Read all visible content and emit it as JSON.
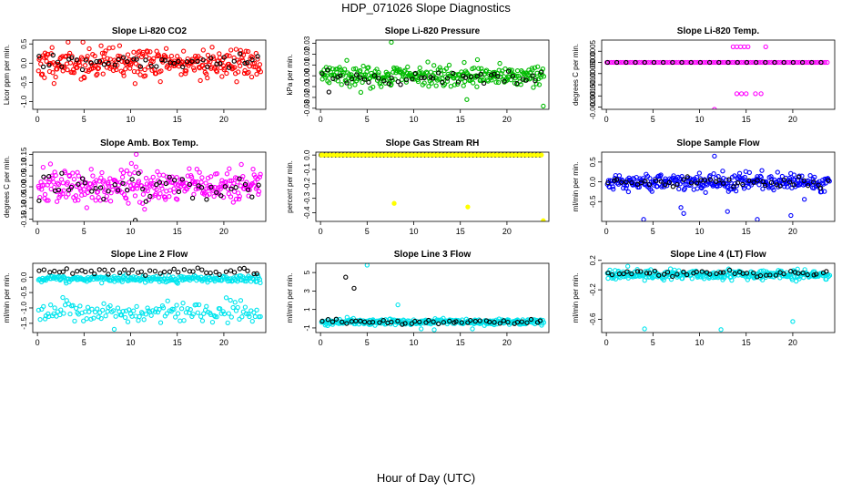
{
  "page": {
    "title": "HDP_071026  Slope Diagnostics",
    "xlabel": "Hour of Day (UTC)"
  },
  "chart_data": [
    {
      "type": "scatter",
      "title": "Slope Li-820 CO2",
      "ylabel": "Licor ppm per min.",
      "xlim": [
        -0.5,
        24.5
      ],
      "ylim": [
        -1.2,
        0.6
      ],
      "xticks": [
        "0",
        "5",
        "10",
        "15",
        "20"
      ],
      "xtick_values": [
        0,
        5,
        10,
        15,
        20
      ],
      "yticks": [
        "-1.0",
        "-0.5",
        "0.0",
        "0.5"
      ],
      "ytick_values": [
        -1.0,
        -0.5,
        0.0,
        0.5
      ],
      "series": [
        {
          "color": "#ff0000",
          "pattern": {
            "kind": "band",
            "center": 0.0,
            "spread": 0.38,
            "n": 300,
            "seed": 11
          }
        },
        {
          "color": "#000000",
          "pattern": {
            "kind": "band",
            "center": 0.03,
            "spread": 0.2,
            "n": 48,
            "seed": 12
          }
        }
      ]
    },
    {
      "type": "scatter",
      "title": "Slope Li-820 Pressure",
      "ylabel": "kPa per min.",
      "xlim": [
        -0.5,
        24.5
      ],
      "ylim": [
        -0.031,
        0.033
      ],
      "xticks": [
        "0",
        "5",
        "10",
        "15",
        "20"
      ],
      "xtick_values": [
        0,
        5,
        10,
        15,
        20
      ],
      "yticks": [
        "-0.03",
        "-0.02",
        "-0.01",
        "0.00",
        "0.01",
        "0.02",
        "0.03"
      ],
      "ytick_values": [
        -0.03,
        -0.02,
        -0.01,
        0.0,
        0.01,
        0.02,
        0.03
      ],
      "series": [
        {
          "color": "#00bb00",
          "pattern": {
            "kind": "band",
            "center": 0.0,
            "spread": 0.009,
            "n": 300,
            "seed": 21
          }
        },
        {
          "color": "#000000",
          "pattern": {
            "kind": "band",
            "center": -0.002,
            "spread": 0.006,
            "n": 48,
            "seed": 22
          }
        }
      ],
      "points": [
        {
          "x": 7.6,
          "y": 0.031,
          "s": 0
        },
        {
          "x": 15.7,
          "y": -0.022,
          "s": 0
        },
        {
          "x": 23.9,
          "y": -0.028,
          "s": 0
        },
        {
          "x": 0.9,
          "y": -0.015,
          "s": 1
        }
      ]
    },
    {
      "type": "scatter",
      "title": "Slope Li-820 Temp.",
      "ylabel": "degrees C per min.",
      "xlim": [
        -0.5,
        24.5
      ],
      "ylim": [
        -0.0021,
        0.001
      ],
      "xticks": [
        "0",
        "5",
        "10",
        "15",
        "20"
      ],
      "xtick_values": [
        0,
        5,
        10,
        15,
        20
      ],
      "yticks": [
        "-0.0020",
        "-0.0015",
        "-0.0010",
        "-0.0005",
        "0.0000",
        "0.0005"
      ],
      "ytick_values": [
        -0.002,
        -0.0015,
        -0.001,
        -0.0005,
        0.0,
        0.0005
      ],
      "series": [
        {
          "color": "#ff00ff",
          "pattern": {
            "kind": "flat",
            "value": 0.0,
            "n": 96
          }
        },
        {
          "color": "#000000",
          "pattern": {
            "kind": "flat",
            "value": 0.0,
            "n": 24,
            "offset": 0.08
          }
        }
      ],
      "points": [
        {
          "x": 13.6,
          "y": 0.0007,
          "s": 0
        },
        {
          "x": 14.0,
          "y": 0.0007,
          "s": 0
        },
        {
          "x": 14.4,
          "y": 0.0007,
          "s": 0
        },
        {
          "x": 14.8,
          "y": 0.0007,
          "s": 0
        },
        {
          "x": 15.2,
          "y": 0.0007,
          "s": 0
        },
        {
          "x": 17.1,
          "y": 0.0007,
          "s": 0
        },
        {
          "x": 14.0,
          "y": -0.0014,
          "s": 0
        },
        {
          "x": 14.5,
          "y": -0.0014,
          "s": 0
        },
        {
          "x": 15.0,
          "y": -0.0014,
          "s": 0
        },
        {
          "x": 16.0,
          "y": -0.0014,
          "s": 0
        },
        {
          "x": 16.6,
          "y": -0.0014,
          "s": 0
        },
        {
          "x": 11.6,
          "y": -0.0021,
          "s": 0
        }
      ]
    },
    {
      "type": "scatter",
      "title": "Slope Amb. Box Temp.",
      "ylabel": "degrees C per min.",
      "xlim": [
        -0.5,
        24.5
      ],
      "ylim": [
        -0.16,
        0.16
      ],
      "xticks": [
        "0",
        "5",
        "10",
        "15",
        "20"
      ],
      "xtick_values": [
        0,
        5,
        10,
        15,
        20
      ],
      "yticks": [
        "-0.15",
        "-0.10",
        "-0.05",
        "0.00",
        "0.05",
        "0.10",
        "0.15"
      ],
      "ytick_values": [
        -0.15,
        -0.1,
        -0.05,
        0.0,
        0.05,
        0.1,
        0.15
      ],
      "series": [
        {
          "color": "#ff00ff",
          "pattern": {
            "kind": "band",
            "center": 0.0,
            "spread": 0.075,
            "n": 300,
            "seed": 41
          }
        },
        {
          "color": "#000000",
          "pattern": {
            "kind": "band",
            "center": 0.0,
            "spread": 0.06,
            "n": 48,
            "seed": 42
          }
        }
      ],
      "points": [
        {
          "x": 10.5,
          "y": -0.155,
          "s": 1
        },
        {
          "x": 10.6,
          "y": 0.15,
          "s": 0
        }
      ]
    },
    {
      "type": "scatter",
      "title": "Slope Gas Stream RH",
      "ylabel": "percent per min.",
      "xlim": [
        -0.5,
        24.5
      ],
      "ylim": [
        -0.46,
        0.02
      ],
      "xticks": [
        "0",
        "5",
        "10",
        "15",
        "20"
      ],
      "xtick_values": [
        0,
        5,
        10,
        15,
        20
      ],
      "yticks": [
        "-0.4",
        "-0.3",
        "-0.2",
        "-0.1",
        "0.0"
      ],
      "ytick_values": [
        -0.4,
        -0.3,
        -0.2,
        -0.1,
        0.0
      ],
      "series": [
        {
          "color": "#000000",
          "pattern": {
            "kind": "flat",
            "value": 0.0,
            "n": 60
          }
        },
        {
          "color": "#ffff00",
          "pattern": {
            "kind": "flat",
            "value": 0.0,
            "n": 60,
            "offset": 0.15,
            "filled": true
          }
        }
      ],
      "points": [
        {
          "x": 7.9,
          "y": -0.335,
          "s": 1
        },
        {
          "x": 15.8,
          "y": -0.36,
          "s": 1
        },
        {
          "x": 23.9,
          "y": -0.455,
          "s": 1
        },
        {
          "x": 0.1,
          "y": 0.0,
          "s": 1
        }
      ]
    },
    {
      "type": "scatter",
      "title": "Slope Sample Flow",
      "ylabel": "ml/min per min.",
      "xlim": [
        -0.5,
        24.5
      ],
      "ylim": [
        -1.0,
        0.75
      ],
      "xticks": [
        "0",
        "5",
        "10",
        "15",
        "20"
      ],
      "xtick_values": [
        0,
        5,
        10,
        15,
        20
      ],
      "yticks": [
        "-0.5",
        "0.0",
        "0.5"
      ],
      "ytick_values": [
        -0.5,
        0.0,
        0.5
      ],
      "series": [
        {
          "color": "#0000ff",
          "pattern": {
            "kind": "band",
            "center": 0.0,
            "spread": 0.2,
            "n": 300,
            "seed": 61
          }
        },
        {
          "color": "#000000",
          "pattern": {
            "kind": "band",
            "center": -0.02,
            "spread": 0.12,
            "n": 48,
            "seed": 62
          }
        }
      ],
      "points": [
        {
          "x": 4.0,
          "y": -0.95,
          "s": 0
        },
        {
          "x": 8.3,
          "y": -0.8,
          "s": 0
        },
        {
          "x": 8.0,
          "y": -0.65,
          "s": 0
        },
        {
          "x": 11.6,
          "y": 0.65,
          "s": 0
        },
        {
          "x": 16.2,
          "y": -0.95,
          "s": 0
        },
        {
          "x": 19.8,
          "y": -0.85,
          "s": 0
        },
        {
          "x": 13.0,
          "y": -0.75,
          "s": 0
        }
      ]
    },
    {
      "type": "scatter",
      "title": "Slope Line 2 Flow",
      "ylabel": "ml/min per min.",
      "xlim": [
        -0.5,
        24.5
      ],
      "ylim": [
        -1.8,
        0.45
      ],
      "xticks": [
        "0",
        "5",
        "10",
        "15",
        "20"
      ],
      "xtick_values": [
        0,
        5,
        10,
        15,
        20
      ],
      "yticks": [
        "-1.5",
        "-1.0",
        "-0.5",
        "0.0"
      ],
      "ytick_values": [
        -1.5,
        -1.0,
        -0.5,
        0.0
      ],
      "series": [
        {
          "color": "#00e5ee",
          "pattern": {
            "kind": "band",
            "center": -0.05,
            "spread": 0.1,
            "n": 240,
            "seed": 71
          }
        },
        {
          "color": "#00e5ee",
          "pattern": {
            "kind": "band",
            "center": -1.15,
            "spread": 0.3,
            "n": 150,
            "seed": 72
          }
        },
        {
          "color": "#000000",
          "pattern": {
            "kind": "band",
            "center": 0.2,
            "spread": 0.1,
            "n": 48,
            "seed": 73
          }
        }
      ]
    },
    {
      "type": "scatter",
      "title": "Slope Line 3 Flow",
      "ylabel": "ml/min per min.",
      "xlim": [
        -0.5,
        24.5
      ],
      "ylim": [
        -1.5,
        6.0
      ],
      "xticks": [
        "0",
        "5",
        "10",
        "15",
        "20"
      ],
      "xtick_values": [
        0,
        5,
        10,
        15,
        20
      ],
      "yticks": [
        "-1",
        "1",
        "3",
        "5"
      ],
      "ytick_values": [
        -1,
        1,
        3,
        5
      ],
      "series": [
        {
          "color": "#00e5ee",
          "pattern": {
            "kind": "band",
            "center": -0.35,
            "spread": 0.3,
            "n": 300,
            "seed": 81
          }
        },
        {
          "color": "#000000",
          "pattern": {
            "kind": "band",
            "center": -0.35,
            "spread": 0.2,
            "n": 48,
            "seed": 82
          }
        }
      ],
      "points": [
        {
          "x": 2.7,
          "y": 4.5,
          "s": 1
        },
        {
          "x": 3.6,
          "y": 3.3,
          "s": 1
        },
        {
          "x": 5.0,
          "y": 5.8,
          "s": 0
        },
        {
          "x": 8.3,
          "y": 1.5,
          "s": 0
        },
        {
          "x": 10.8,
          "y": -1.1,
          "s": 0
        },
        {
          "x": 12.2,
          "y": -1.2,
          "s": 0
        },
        {
          "x": 16.3,
          "y": -1.1,
          "s": 0
        }
      ]
    },
    {
      "type": "scatter",
      "title": "Slope Line 4 (LT) Flow",
      "ylabel": "ml/min per min.",
      "xlim": [
        -0.5,
        24.5
      ],
      "ylim": [
        -0.78,
        0.16
      ],
      "xticks": [
        "0",
        "5",
        "10",
        "15",
        "20"
      ],
      "xtick_values": [
        0,
        5,
        10,
        15,
        20
      ],
      "yticks": [
        "-0.6",
        "-0.2",
        "0.2"
      ],
      "ytick_values": [
        -0.6,
        -0.2,
        0.2
      ],
      "series": [
        {
          "color": "#00e5ee",
          "pattern": {
            "kind": "band",
            "center": 0.0,
            "spread": 0.06,
            "n": 300,
            "seed": 91
          }
        },
        {
          "color": "#000000",
          "pattern": {
            "kind": "band",
            "center": 0.02,
            "spread": 0.04,
            "n": 48,
            "seed": 92
          }
        }
      ],
      "points": [
        {
          "x": 4.1,
          "y": -0.73,
          "s": 0
        },
        {
          "x": 12.3,
          "y": -0.74,
          "s": 0
        },
        {
          "x": 20.0,
          "y": -0.63,
          "s": 0
        },
        {
          "x": 2.3,
          "y": 0.12,
          "s": 0
        }
      ]
    }
  ]
}
